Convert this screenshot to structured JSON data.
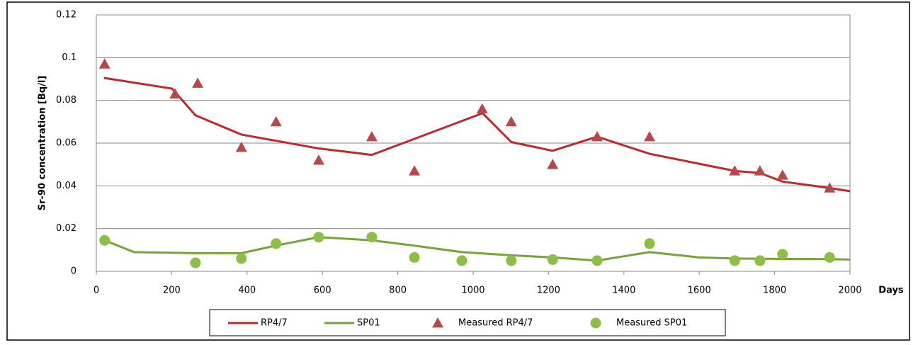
{
  "chart_data": {
    "type": "line",
    "xlabel": "Days",
    "ylabel": "Sr-90 concentration [Bq/l]",
    "xlim": [
      0,
      2000
    ],
    "xticks": [
      0,
      200,
      400,
      600,
      800,
      1000,
      1200,
      1400,
      1600,
      1800,
      2000
    ],
    "ylim": [
      0,
      0.12
    ],
    "yticks": [
      0,
      0.02,
      0.04,
      0.06,
      0.08,
      0.1,
      0.12
    ],
    "grid": true,
    "legend": "bottom",
    "series": [
      {
        "name": "RP4/7",
        "color": "#c0282d",
        "marker": "none",
        "x": [
          20,
          201,
          263,
          385,
          590,
          731,
          844,
          1025,
          1101,
          1211,
          1329,
          1468,
          1694,
          1761,
          1821,
          1946,
          2000
        ],
        "values": [
          0.0905,
          0.0855,
          0.073,
          0.064,
          0.0575,
          0.0545,
          0.062,
          0.074,
          0.0605,
          0.0564,
          0.063,
          0.055,
          0.047,
          0.046,
          0.042,
          0.039,
          0.0375
        ]
      },
      {
        "name": "SP01",
        "color": "#77a33a",
        "marker": "none",
        "x": [
          22,
          100,
          263,
          385,
          475,
          590,
          731,
          844,
          970,
          1101,
          1211,
          1329,
          1468,
          1600,
          1694,
          1821,
          1946,
          2000
        ],
        "values": [
          0.0145,
          0.009,
          0.0085,
          0.0085,
          0.012,
          0.016,
          0.0145,
          0.012,
          0.009,
          0.0075,
          0.0065,
          0.005,
          0.009,
          0.0065,
          0.006,
          0.0058,
          0.0057,
          0.0055
        ]
      },
      {
        "name": "Measured RP4/7",
        "color": "#b8474a",
        "marker": "triangle",
        "x": [
          22,
          209,
          269,
          385,
          477,
          590,
          731,
          844,
          1024,
          1101,
          1211,
          1329,
          1468,
          1694,
          1761,
          1821,
          1946
        ],
        "values": [
          0.097,
          0.083,
          0.088,
          0.058,
          0.07,
          0.052,
          0.063,
          0.047,
          0.076,
          0.07,
          0.05,
          0.063,
          0.063,
          0.047,
          0.047,
          0.045,
          0.039
        ]
      },
      {
        "name": "Measured SP01",
        "color": "#8bbf45",
        "marker": "circle",
        "x": [
          22,
          263,
          385,
          477,
          590,
          731,
          844,
          970,
          1101,
          1211,
          1329,
          1468,
          1694,
          1761,
          1821,
          1946
        ],
        "values": [
          0.0145,
          0.004,
          0.006,
          0.013,
          0.016,
          0.016,
          0.0065,
          0.005,
          0.005,
          0.0055,
          0.005,
          0.013,
          0.005,
          0.005,
          0.008,
          0.0065
        ]
      }
    ]
  }
}
